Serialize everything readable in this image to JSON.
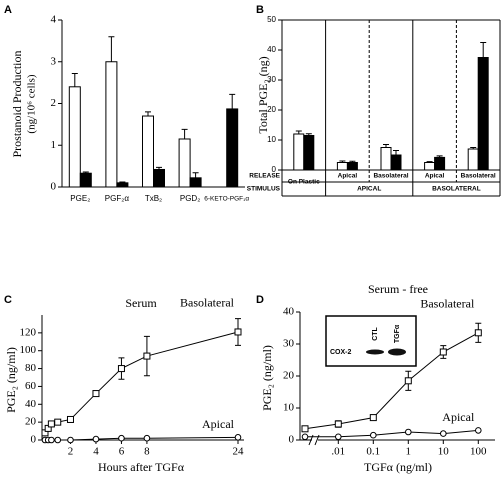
{
  "chart_data": [
    {
      "type": "bar",
      "panel": "A",
      "ylabel": [
        "Prostanoid Production",
        "(ng/10⁶ cells)"
      ],
      "categories": [
        "PGE₂",
        "PGF₂α",
        "TxB₂",
        "PGD₂",
        "6-KETO-PGF₁α"
      ],
      "series": [
        {
          "color": "#ffffff",
          "values": [
            2.4,
            3.0,
            1.7,
            1.15,
            null
          ],
          "errors": [
            0.32,
            0.6,
            0.1,
            0.23,
            null
          ]
        },
        {
          "color": "#000000",
          "values": [
            0.33,
            0.1,
            0.42,
            0.22,
            1.87
          ],
          "errors": [
            0.03,
            0.02,
            0.05,
            0.12,
            0.35
          ]
        }
      ],
      "ylim": [
        0,
        4
      ],
      "yticks": [
        0,
        1,
        2,
        3,
        4
      ]
    },
    {
      "type": "bar",
      "panel": "B",
      "ylabel": "Total PGE₂ (ng)",
      "row_labels": [
        "RELEASE",
        "STIMULUS"
      ],
      "categories": [
        "On Plastic",
        "Apical",
        "Basolateral",
        "Apical",
        "Basolateral"
      ],
      "groups": [
        "APICAL",
        "BASOLATERAL"
      ],
      "series": [
        {
          "color": "#ffffff",
          "values": [
            12,
            2.5,
            7.5,
            2.5,
            7
          ],
          "errors": [
            1,
            0.5,
            1,
            0.3,
            0.5
          ]
        },
        {
          "color": "#000000",
          "values": [
            11.5,
            2.5,
            5,
            4.2,
            37.5
          ],
          "errors": [
            0.6,
            0.4,
            1.5,
            0.5,
            5
          ]
        }
      ],
      "ylim": [
        0,
        50
      ],
      "yticks": [
        0,
        10,
        20,
        30,
        40,
        50
      ]
    },
    {
      "type": "line",
      "panel": "C",
      "title": "Serum",
      "xlabel": "Hours after TGFα",
      "ylabel": "PGE₂ (ng/ml)",
      "x": [
        0,
        0.25,
        0.5,
        1,
        2,
        4,
        6,
        8,
        24
      ],
      "series": [
        {
          "name": "Basolateral",
          "marker": "square",
          "values": [
            8,
            13,
            18,
            20,
            23,
            52,
            80,
            94,
            121
          ],
          "errors": [
            2,
            3,
            3,
            2,
            3,
            3,
            12,
            22,
            15
          ]
        },
        {
          "name": "Apical",
          "marker": "circle",
          "values": [
            0,
            0,
            0,
            0,
            0,
            1,
            2,
            2,
            3
          ]
        }
      ],
      "xlim": [
        0,
        24
      ],
      "xticks": [
        2,
        4,
        6,
        8,
        24
      ],
      "ylim": [
        0,
        140
      ],
      "yticks": [
        0,
        20,
        40,
        60,
        80,
        100,
        120
      ]
    },
    {
      "type": "line",
      "panel": "D",
      "title": "Serum - free",
      "xlabel": "TGFα (ng/ml)",
      "ylabel": "PGE₂ (ng/ml)",
      "x": [
        0,
        0.01,
        0.1,
        1,
        10,
        100
      ],
      "log_x": true,
      "series": [
        {
          "name": "Basolateral",
          "marker": "square",
          "values": [
            3.5,
            5,
            7,
            18.5,
            27.5,
            33.5
          ],
          "errors": [
            0.5,
            1,
            0.5,
            3,
            2,
            3
          ]
        },
        {
          "name": "Apical",
          "marker": "circle",
          "values": [
            1,
            1,
            1.5,
            2.5,
            2,
            3
          ]
        }
      ],
      "xlim": [
        0.003,
        300
      ],
      "xticks": [
        {
          "value": 0.01,
          "label": ".01"
        },
        0.1,
        1,
        10,
        100
      ],
      "ylim": [
        0,
        40
      ],
      "yticks": [
        0,
        10,
        20,
        30,
        40
      ],
      "inset": {
        "lanes": [
          "CTL",
          "TGFα"
        ],
        "label": "COX-2"
      }
    }
  ]
}
